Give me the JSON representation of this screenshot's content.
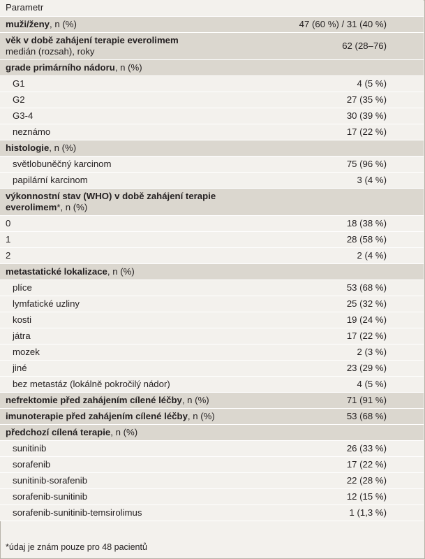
{
  "header": "Parametr",
  "rows": [
    {
      "b": "muži/ženy",
      "r": ", n (%)",
      "v": "47 (60 %) / 31 (40 %)"
    },
    {
      "b": "věk v době zahájení terapie everolimem",
      "r": "",
      "l2": "medián (rozsah), roky",
      "v": "62 (28–76)"
    },
    {
      "b": "grade primárního nádoru",
      "r": ", n (%)"
    },
    {
      "t": "G1",
      "v": "4 (5 %)"
    },
    {
      "t": "G2",
      "v": "27 (35 %)"
    },
    {
      "t": "G3-4",
      "v": "30 (39 %)"
    },
    {
      "t": "neznámo",
      "v": "17 (22 %)"
    },
    {
      "b": "histologie",
      "r": ", n (%)"
    },
    {
      "t": "světlobuněčný karcinom",
      "v": "75 (96 %)"
    },
    {
      "t": "papilární karcinom",
      "v": "3 (4 %)"
    },
    {
      "b": "výkonnostní stav (WHO) v době zahájení terapie",
      "b2": "everolimem",
      "r": "*, n (%)"
    },
    {
      "t": "0",
      "v": "18 (38 %)",
      "flush": true
    },
    {
      "t": "1",
      "v": "28 (58 %)",
      "flush": true
    },
    {
      "t": "2",
      "v": "2 (4 %)",
      "flush": true
    },
    {
      "b": "metastatické lokalizace",
      "r": ", n (%)"
    },
    {
      "t": "plíce",
      "v": "53 (68 %)"
    },
    {
      "t": "lymfatické uzliny",
      "v": "25 (32 %)"
    },
    {
      "t": "kosti",
      "v": "19 (24 %)"
    },
    {
      "t": "játra",
      "v": "17 (22 %)"
    },
    {
      "t": "mozek",
      "v": "2 (3 %)"
    },
    {
      "t": "jiné",
      "v": "23 (29 %)"
    },
    {
      "t": "bez metastáz (lokálně pokročilý nádor)",
      "v": "4 (5 %)"
    },
    {
      "b": "nefrektomie před zahájením cílené léčby",
      "r": ", n (%)",
      "v": "71 (91 %)"
    },
    {
      "b": "imunoterapie před zahájením cílené léčby",
      "r": ", n (%)",
      "v": "53 (68 %)"
    },
    {
      "b": "předchozí cílená terapie",
      "r": ", n (%)"
    },
    {
      "t": "sunitinib",
      "v": "26 (33 %)"
    },
    {
      "t": "sorafenib",
      "v": "17 (22 %)"
    },
    {
      "t": "sunitinib-sorafenib",
      "v": "22 (28 %)"
    },
    {
      "t": "sorafenib-sunitinib",
      "v": "12 (15 %)"
    },
    {
      "t": "sorafenib-sunitinib-temsirolimus",
      "v": "1 (1,3 %)"
    }
  ],
  "footnote": "*údaj je znám pouze pro 48 pacientů"
}
